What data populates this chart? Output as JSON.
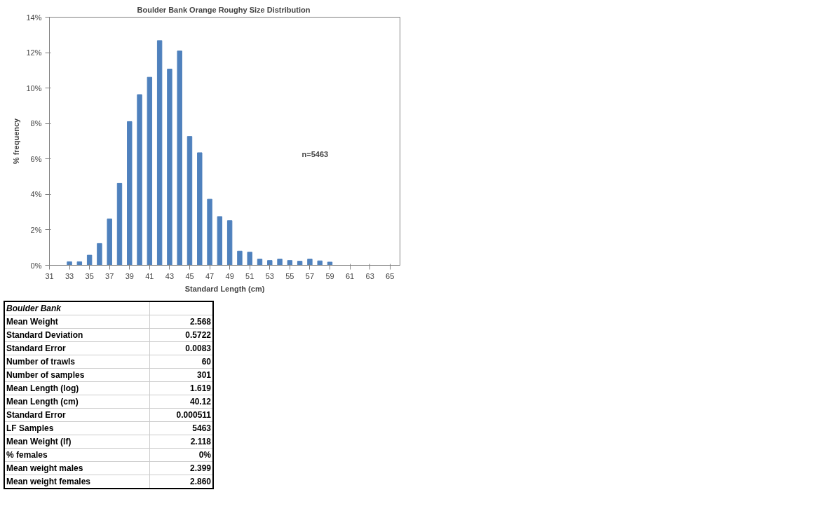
{
  "chart_data": {
    "type": "bar",
    "title": "Boulder Bank  Orange Roughy Size Distribution",
    "xlabel": "Standard Length (cm)",
    "ylabel": "% frequency",
    "x": [
      33,
      34,
      35,
      36,
      37,
      38,
      39,
      40,
      41,
      42,
      43,
      44,
      45,
      46,
      47,
      48,
      49,
      50,
      51,
      52,
      53,
      54,
      55,
      56,
      57,
      58,
      59
    ],
    "values": [
      0.2,
      0.2,
      0.57,
      1.23,
      2.62,
      4.63,
      8.11,
      9.63,
      10.61,
      12.68,
      11.07,
      12.09,
      7.27,
      6.35,
      3.73,
      2.75,
      2.52,
      0.8,
      0.74,
      0.35,
      0.27,
      0.35,
      0.27,
      0.23,
      0.35,
      0.25,
      0.18
    ],
    "color": "#4f81bd",
    "xlim": [
      31,
      66
    ],
    "xticks": [
      31,
      33,
      35,
      37,
      39,
      41,
      43,
      45,
      47,
      49,
      51,
      53,
      55,
      57,
      59,
      61,
      63,
      65
    ],
    "ylim": [
      0,
      14
    ],
    "yticks": [
      {
        "value": 0,
        "label": "0%"
      },
      {
        "value": 2,
        "label": "2%"
      },
      {
        "value": 4,
        "label": "4%"
      },
      {
        "value": 6,
        "label": "6%"
      },
      {
        "value": 8,
        "label": "8%"
      },
      {
        "value": 10,
        "label": "10%"
      },
      {
        "value": 12,
        "label": "12%"
      },
      {
        "value": 14,
        "label": "14%"
      }
    ],
    "grid": false,
    "annotations": [
      "n=5463",
      "Boulder Bank",
      "Mean Weight",
      "2.568",
      "Standard Deviation",
      "0.5722",
      "Standard Error",
      "0.0083",
      "Number of trawls",
      "60",
      "Number of samples",
      "301",
      "Mean Length (log)",
      "1.619",
      "Mean Length (cm)",
      "40.12",
      "Standard Error",
      "0.000511",
      "LF Samples",
      "5463",
      "Mean Weight (lf)",
      "2.118",
      "% females",
      "0%",
      "Mean weight males",
      "2.399",
      "Mean weight females",
      "2.860"
    ]
  }
}
